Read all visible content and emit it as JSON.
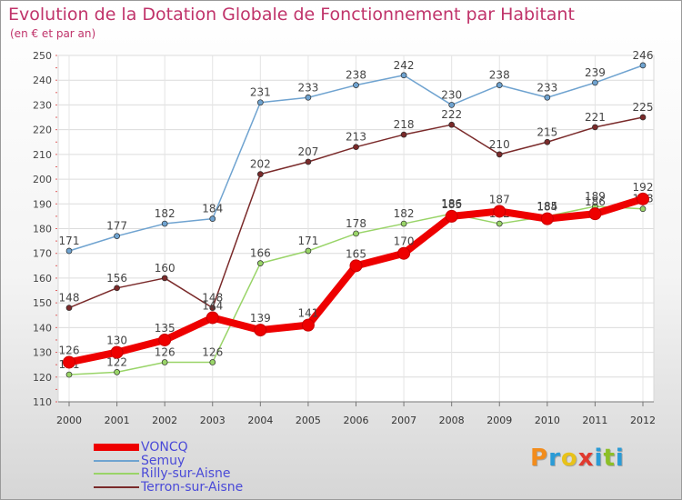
{
  "title": "Evolution de la Dotation Globale de Fonctionnement par Habitant",
  "subtitle": "(en € et par an)",
  "logo": {
    "text": "Proxiti",
    "letters": [
      {
        "ch": "P",
        "color": "#f28c1c"
      },
      {
        "ch": "r",
        "color": "#2a9bd6"
      },
      {
        "ch": "o",
        "color": "#e8c21a"
      },
      {
        "ch": "x",
        "color": "#e03a2f"
      },
      {
        "ch": "i",
        "color": "#2a9bd6"
      },
      {
        "ch": "t",
        "color": "#8cbf26"
      },
      {
        "ch": "i",
        "color": "#2a9bd6"
      }
    ]
  },
  "chart_data": {
    "type": "line",
    "title": "Evolution de la Dotation Globale de Fonctionnement par Habitant",
    "ylabel": "(en € et par an)",
    "xlabel": "",
    "categories": [
      "2000",
      "2001",
      "2002",
      "2003",
      "2004",
      "2005",
      "2006",
      "2007",
      "2008",
      "2009",
      "2010",
      "2011",
      "2012"
    ],
    "ylim": [
      110,
      250
    ],
    "yticks": [
      110,
      120,
      130,
      140,
      150,
      160,
      170,
      180,
      190,
      200,
      210,
      220,
      230,
      240,
      250
    ],
    "grid": true,
    "legend_position": "bottom-left",
    "series": [
      {
        "name": "Semuy",
        "color": "#6fa3d0",
        "values": [
          171,
          177,
          182,
          184,
          231,
          233,
          238,
          242,
          230,
          238,
          233,
          239,
          246
        ]
      },
      {
        "name": "Terron-sur-Aisne",
        "color": "#7a2a2a",
        "values": [
          148,
          156,
          160,
          148,
          202,
          207,
          213,
          218,
          222,
          210,
          215,
          221,
          225
        ]
      },
      {
        "name": "Rilly-sur-Aisne",
        "color": "#99d468",
        "values": [
          121,
          122,
          126,
          126,
          166,
          171,
          178,
          182,
          186,
          182,
          185,
          189,
          188
        ]
      },
      {
        "name": "VONCQ",
        "color": "#ee0000",
        "values": [
          126,
          130,
          135,
          144,
          139,
          141,
          165,
          170,
          185,
          187,
          184,
          186,
          192
        ]
      }
    ]
  }
}
